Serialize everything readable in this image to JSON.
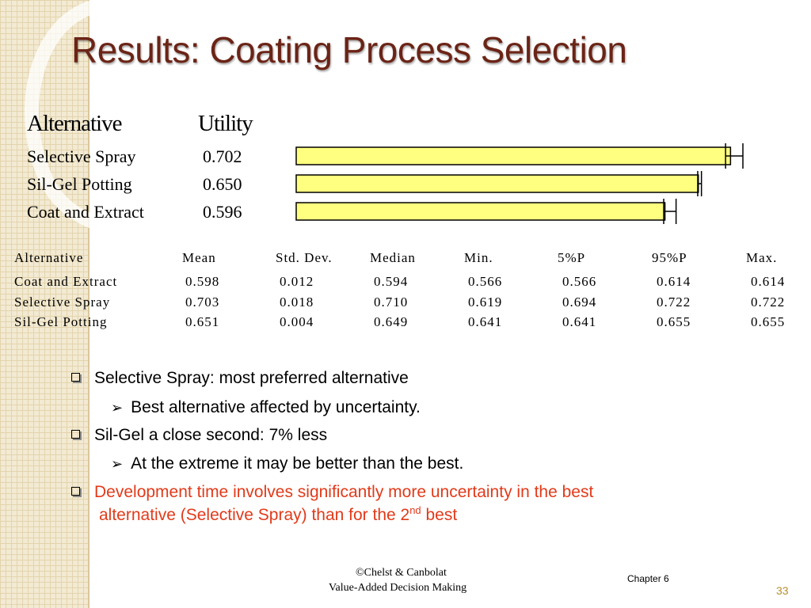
{
  "slide": {
    "title": "Results: Coating Process Selection",
    "page_number": "33",
    "footer_left_1": "©Chelst & Canbolat",
    "footer_left_2": "Value-Added Decision Making",
    "footer_right": "Chapter 6"
  },
  "chart_data": {
    "type": "bar",
    "column_headers": [
      "Alternative",
      "Utility"
    ],
    "categories": [
      "Selective Spray",
      "Sil-Gel Potting",
      "Coat and Extract"
    ],
    "values": [
      0.702,
      0.65,
      0.596
    ],
    "value_labels": [
      "0.702",
      "0.650",
      "0.596"
    ],
    "ranges": [
      {
        "low": 0.694,
        "high": 0.722
      },
      {
        "low": 0.649,
        "high": 0.655
      },
      {
        "low": 0.594,
        "high": 0.614
      }
    ],
    "bar_color": "#ffff80",
    "xlim": [
      0,
      0.722
    ]
  },
  "stats_table": {
    "headers": [
      "Alternative",
      "Mean",
      "Std. Dev.",
      "Median",
      "Min.",
      "5%P",
      "95%P",
      "Max."
    ],
    "rows": [
      [
        "Coat and Extract",
        "0.598",
        "0.012",
        "0.594",
        "0.566",
        "0.566",
        "0.614",
        "0.614"
      ],
      [
        "Selective Spray",
        "0.703",
        "0.018",
        "0.710",
        "0.619",
        "0.694",
        "0.722",
        "0.722"
      ],
      [
        "Sil-Gel Potting",
        "0.651",
        "0.004",
        "0.649",
        "0.641",
        "0.641",
        "0.655",
        "0.655"
      ]
    ]
  },
  "bullets": [
    {
      "text": "Selective Spray: most preferred alternative",
      "sub": "Best alternative affected by uncertainty."
    },
    {
      "text": "Sil-Gel a close second: 7% less",
      "sub": "At the extreme it may be better than the best."
    },
    {
      "line1": "Development time involves significantly more uncertainty in the best",
      "line2_pre": "alternative (Selective Spray) than for the 2",
      "line2_sup": "nd",
      "line2_post": " best",
      "color": "#e23a1a"
    }
  ]
}
